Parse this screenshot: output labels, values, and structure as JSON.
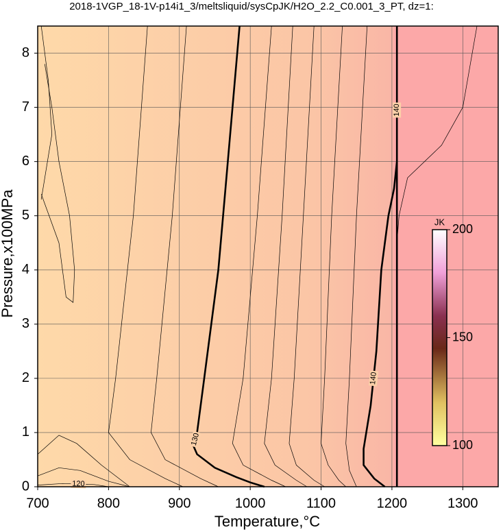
{
  "chart_data": {
    "type": "contour",
    "title": "2018-1VGP_18-1V-p14i1_3/meltsliquid/sysCpJK/H2O_2.2_C0.001_3_PT, dz=1:",
    "x_label": "Temperature,°C",
    "y_label": "Pressure,x100MPa",
    "xlim": [
      700,
      1350
    ],
    "xticks": [
      700,
      800,
      900,
      1000,
      1100,
      1200,
      1300
    ],
    "ylim": [
      0,
      8.5
    ],
    "yticks": [
      0,
      1,
      2,
      3,
      4,
      5,
      6,
      7,
      8
    ],
    "grid": true,
    "contours": [
      {
        "level": 130,
        "bold": true,
        "x": [
          985,
          975,
          965,
          955,
          945,
          935,
          925,
          920,
          925,
          950,
          980,
          1000,
          1020
        ],
        "y": [
          8.5,
          7,
          5.5,
          4,
          3,
          2,
          1,
          0.75,
          0.6,
          0.35,
          0.18,
          0.08,
          0
        ]
      },
      {
        "level": 140,
        "bold": true,
        "x": [
          1190,
          1175,
          1160,
          1160,
          1170,
          1178,
          1185,
          1195,
          1203,
          1207
        ],
        "y": [
          0,
          0.15,
          0.4,
          0.7,
          1.5,
          2.5,
          4,
          5,
          5.5,
          6
        ]
      },
      {
        "level": 140,
        "bold": true,
        "x": [
          1207,
          1207,
          1207
        ],
        "y": [
          0,
          5.4,
          8.5
        ]
      },
      {
        "level": 120,
        "bold": false,
        "x": [
          700,
          735,
          780,
          800
        ],
        "y": [
          0.03,
          0.06,
          0.04,
          0
        ]
      },
      {
        "x": [
          855,
          835,
          810,
          800,
          830,
          880,
          905
        ],
        "y": [
          8.5,
          5,
          2,
          1,
          0.5,
          0.15,
          0
        ]
      },
      {
        "x": [
          910,
          890,
          868,
          860,
          880,
          930,
          955
        ],
        "y": [
          8.5,
          5,
          2,
          1,
          0.5,
          0.15,
          0
        ]
      },
      {
        "x": [
          1030,
          1010,
          990,
          975,
          990,
          1030,
          1050
        ],
        "y": [
          8.5,
          5,
          2,
          0.8,
          0.4,
          0.12,
          0
        ]
      },
      {
        "x": [
          1060,
          1045,
          1030,
          1020,
          1035,
          1065,
          1080
        ],
        "y": [
          8.5,
          5,
          2,
          0.8,
          0.4,
          0.12,
          0
        ]
      },
      {
        "x": [
          1090,
          1075,
          1062,
          1055,
          1065,
          1090,
          1105
        ],
        "y": [
          8.5,
          5,
          2,
          0.8,
          0.4,
          0.12,
          0
        ]
      },
      {
        "x": [
          1130,
          1115,
          1105,
          1100,
          1110,
          1125,
          1135
        ],
        "y": [
          8.5,
          5,
          2,
          0.8,
          0.4,
          0.12,
          0
        ]
      },
      {
        "x": [
          1165,
          1150,
          1140,
          1135,
          1140,
          1150
        ],
        "y": [
          8.5,
          5,
          2,
          0.8,
          0.3,
          0
        ]
      },
      {
        "x": [
          1320,
          1300,
          1270,
          1222,
          1210,
          1207
        ],
        "y": [
          8.5,
          7,
          6.3,
          5.7,
          5,
          4.5
        ]
      },
      {
        "x": [
          705,
          715,
          720,
          705
        ],
        "y": [
          8.5,
          7.5,
          6.5,
          5.3
        ]
      },
      {
        "x": [
          705,
          730,
          740,
          750,
          752,
          745,
          730,
          720,
          710
        ],
        "y": [
          5.4,
          4.5,
          3.5,
          3.4,
          4,
          5,
          6,
          7,
          7.8
        ]
      },
      {
        "x": [
          700,
          730,
          755,
          790,
          830
        ],
        "y": [
          0.6,
          0.95,
          0.8,
          0.4,
          0
        ]
      },
      {
        "x": [
          700,
          730,
          760,
          800,
          830
        ],
        "y": [
          0.2,
          0.35,
          0.3,
          0.1,
          0
        ]
      }
    ],
    "colorbar": {
      "label": "JK",
      "lim": [
        100,
        200
      ],
      "ticks": [
        100,
        150,
        200
      ]
    }
  }
}
